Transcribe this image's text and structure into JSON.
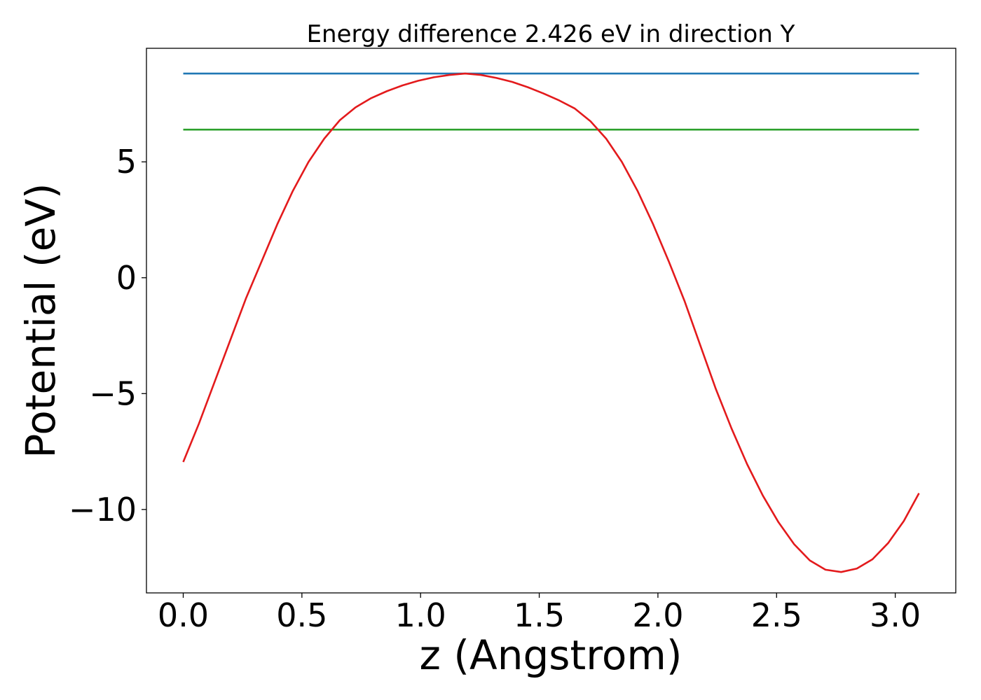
{
  "chart_data": {
    "type": "line",
    "title": "Energy difference 2.426 eV in direction Y",
    "xlabel": "z (Angstrom)",
    "ylabel": "Potential (eV)",
    "xlim": [
      -0.155,
      3.255
    ],
    "ylim": [
      -13.6,
      9.9
    ],
    "xticks": [
      0.0,
      0.5,
      1.0,
      1.5,
      2.0,
      2.5,
      3.0
    ],
    "xtick_labels": [
      "0.0",
      "0.5",
      "1.0",
      "1.5",
      "2.0",
      "2.5",
      "3.0"
    ],
    "yticks": [
      5,
      0,
      -5,
      -10
    ],
    "ytick_labels": [
      "5",
      "0",
      "−5",
      "−10"
    ],
    "grid": false,
    "series": [
      {
        "color": "#1f77b4",
        "x": [
          0.0,
          3.1
        ],
        "y": [
          8.81,
          8.81
        ]
      },
      {
        "color": "#2ca02c",
        "x": [
          0.0,
          3.1
        ],
        "y": [
          6.39,
          6.39
        ]
      },
      {
        "color": "#e31a1c",
        "x": [
          0.0,
          0.066,
          0.132,
          0.198,
          0.264,
          0.33,
          0.396,
          0.462,
          0.528,
          0.594,
          0.66,
          0.726,
          0.792,
          0.858,
          0.924,
          0.99,
          1.056,
          1.122,
          1.188,
          1.254,
          1.32,
          1.386,
          1.452,
          1.518,
          1.584,
          1.65,
          1.716,
          1.782,
          1.848,
          1.914,
          1.98,
          2.046,
          2.112,
          2.178,
          2.244,
          2.31,
          2.376,
          2.442,
          2.508,
          2.574,
          2.64,
          2.706,
          2.772,
          2.838,
          2.904,
          2.97,
          3.036,
          3.1
        ],
        "y": [
          -7.95,
          -6.3,
          -4.5,
          -2.7,
          -0.9,
          0.7,
          2.3,
          3.75,
          5.0,
          6.0,
          6.8,
          7.35,
          7.75,
          8.05,
          8.3,
          8.5,
          8.65,
          8.75,
          8.81,
          8.75,
          8.62,
          8.45,
          8.22,
          7.95,
          7.65,
          7.3,
          6.75,
          6.0,
          5.0,
          3.75,
          2.3,
          0.7,
          -1.0,
          -2.9,
          -4.8,
          -6.5,
          -8.05,
          -9.4,
          -10.55,
          -11.5,
          -12.2,
          -12.6,
          -12.7,
          -12.55,
          -12.15,
          -11.45,
          -10.5,
          -9.3
        ]
      }
    ]
  }
}
